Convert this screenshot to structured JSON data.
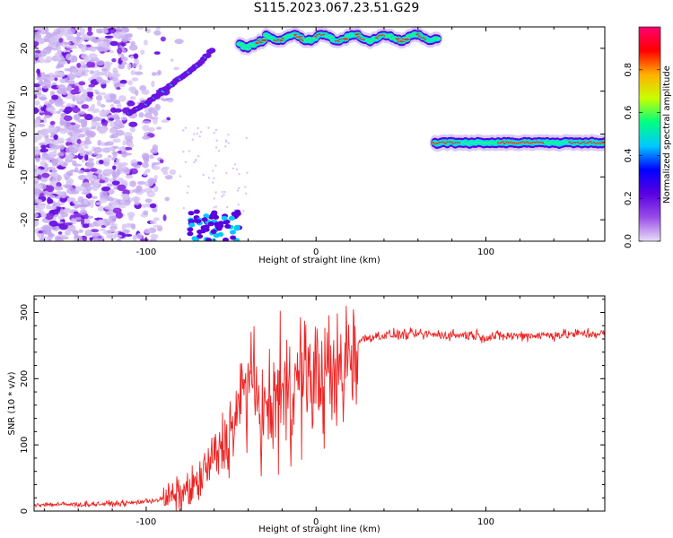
{
  "figure": {
    "title": "S115.2023.067.23.51.G29"
  },
  "chart_data": [
    {
      "type": "heatmap",
      "xlabel": "Height of straight line (km)",
      "ylabel": "Frequency (Hz)",
      "xlim": [
        -166,
        170
      ],
      "ylim": [
        -25,
        25
      ],
      "x_ticks": [
        -100,
        0,
        100
      ],
      "y_ticks": [
        -20,
        -10,
        0,
        10,
        20
      ],
      "colorbar": {
        "label": "Normalized spectral amplitude",
        "range": [
          0,
          1
        ],
        "ticks": [
          0.0,
          0.2,
          0.4,
          0.6,
          0.8
        ],
        "colormap": [
          "#e8ddf7",
          "#9a4de8",
          "#5a00e0",
          "#0000ff",
          "#00c8ff",
          "#00ff80",
          "#c8ff00",
          "#ffb000",
          "#ff0000",
          "#ff0070"
        ]
      },
      "features": [
        {
          "name": "scatter-noise",
          "x_range": [
            -166,
            -80
          ],
          "y_range": [
            -25,
            25
          ]
        },
        {
          "name": "curve-rising",
          "points": [
            [
              -110,
              5
            ],
            [
              -100,
              7
            ],
            [
              -90,
              10
            ],
            [
              -80,
              13
            ],
            [
              -70,
              16
            ],
            [
              -60,
              20
            ]
          ]
        },
        {
          "name": "bright-band-upper",
          "x_range": [
            -45,
            72
          ],
          "y_center": 22.5
        },
        {
          "name": "bright-band-lower",
          "x_range": [
            70,
            170
          ],
          "y_center": -2
        },
        {
          "name": "blob-bottom",
          "x_range": [
            -75,
            -45
          ],
          "y_range": [
            -25,
            -18
          ]
        }
      ]
    },
    {
      "type": "line",
      "xlabel": "Height of straight line (km)",
      "ylabel": "SNR (10 * v/v)",
      "xlim": [
        -166,
        170
      ],
      "ylim": [
        0,
        325
      ],
      "x_ticks": [
        -100,
        0,
        100
      ],
      "y_ticks": [
        0,
        100,
        200,
        300
      ],
      "color": "#ee2222",
      "series": [
        {
          "x": [
            -166,
            -140,
            -110,
            -90,
            -80,
            -70,
            -60,
            -50,
            -45,
            -40,
            -35,
            -30,
            -25,
            -20,
            -15,
            -10,
            -5,
            0,
            5,
            10,
            15,
            20,
            25,
            30,
            40,
            60,
            80,
            95,
            100,
            105,
            120,
            140,
            160,
            170
          ],
          "y": [
            10,
            10,
            12,
            18,
            25,
            40,
            80,
            120,
            160,
            190,
            170,
            140,
            160,
            185,
            190,
            195,
            200,
            205,
            200,
            190,
            215,
            245,
            255,
            262,
            266,
            267,
            266,
            266,
            262,
            264,
            265,
            266,
            268,
            268
          ]
        }
      ]
    }
  ]
}
